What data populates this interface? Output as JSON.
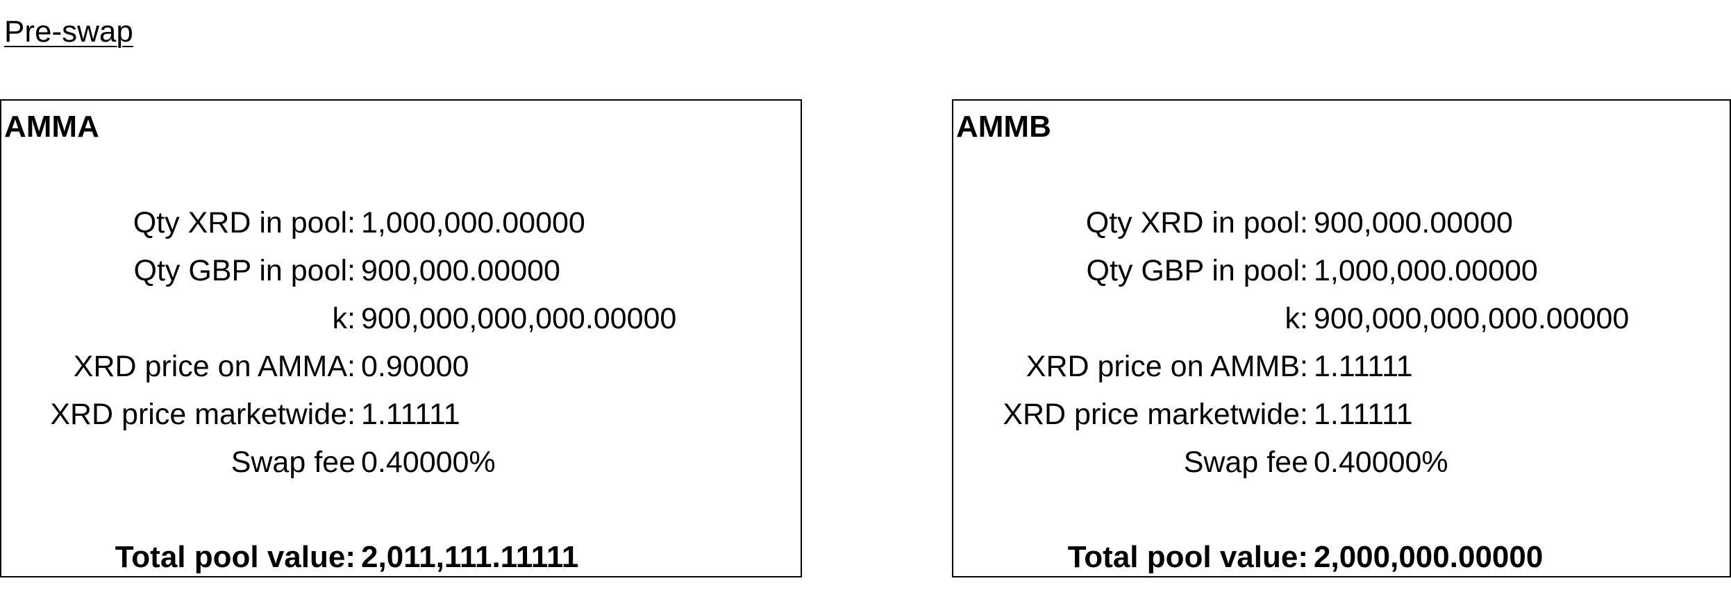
{
  "heading": "Pre-swap",
  "pools": [
    {
      "title": "AMMA",
      "rows": [
        {
          "label": "Qty XRD in pool:",
          "value": "1,000,000.00000"
        },
        {
          "label": "Qty GBP in pool:",
          "value": "900,000.00000"
        },
        {
          "label": "k:",
          "value": "900,000,000,000.00000"
        },
        {
          "label": "XRD price on AMMA:",
          "value": "0.90000"
        },
        {
          "label": "XRD price marketwide:",
          "value": "1.11111"
        },
        {
          "label": "Swap fee",
          "value": "0.40000%"
        }
      ],
      "total_label": "Total pool value:",
      "total_value": "2,011,111.11111"
    },
    {
      "title": "AMMB",
      "rows": [
        {
          "label": "Qty XRD in pool:",
          "value": "900,000.00000"
        },
        {
          "label": "Qty GBP in pool:",
          "value": "1,000,000.00000"
        },
        {
          "label": "k:",
          "value": "900,000,000,000.00000"
        },
        {
          "label": "XRD price on AMMB:",
          "value": "1.11111"
        },
        {
          "label": "XRD price marketwide:",
          "value": "1.11111"
        },
        {
          "label": "Swap fee",
          "value": "0.40000%"
        }
      ],
      "total_label": "Total pool value:",
      "total_value": "2,000,000.00000"
    }
  ]
}
